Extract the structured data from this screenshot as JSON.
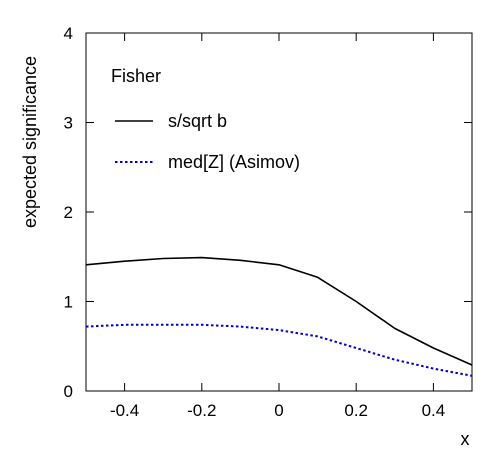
{
  "chart_data": {
    "type": "line",
    "title": "",
    "xlabel": "x",
    "ylabel": "expected significance",
    "xlim": [
      -0.5,
      0.5
    ],
    "ylim": [
      0,
      4
    ],
    "xticks": [
      -0.4,
      -0.2,
      0,
      0.2,
      0.4
    ],
    "xtick_labels": [
      "-0.4",
      "-0.2",
      "0",
      "0.2",
      "0.4"
    ],
    "yticks": [
      0,
      1,
      2,
      3,
      4
    ],
    "ytick_labels": [
      "0",
      "1",
      "2",
      "3",
      "4"
    ],
    "grid": false,
    "legend": {
      "title": "Fisher",
      "position": "top-left"
    },
    "series": [
      {
        "name": "s/sqrt b",
        "color": "#000000",
        "style": "solid",
        "x": [
          -0.5,
          -0.4,
          -0.3,
          -0.2,
          -0.1,
          0.0,
          0.1,
          0.2,
          0.3,
          0.4,
          0.5
        ],
        "y": [
          1.41,
          1.45,
          1.48,
          1.49,
          1.46,
          1.41,
          1.27,
          1.0,
          0.7,
          0.48,
          0.29
        ]
      },
      {
        "name": "med[Z] (Asimov)",
        "color": "#0000cc",
        "style": "dotted",
        "x": [
          -0.5,
          -0.4,
          -0.3,
          -0.2,
          -0.1,
          0.0,
          0.1,
          0.2,
          0.3,
          0.4,
          0.5
        ],
        "y": [
          0.72,
          0.74,
          0.74,
          0.74,
          0.72,
          0.68,
          0.61,
          0.48,
          0.35,
          0.25,
          0.17
        ]
      }
    ]
  }
}
